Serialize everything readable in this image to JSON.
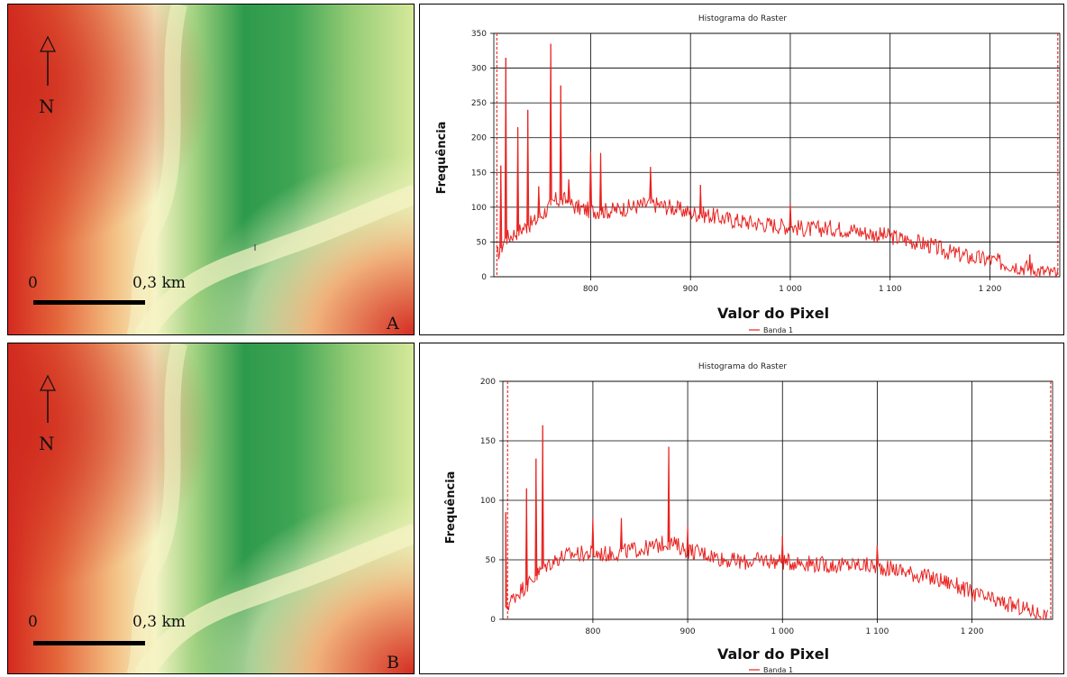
{
  "maps": [
    {
      "panel_label": "A",
      "north_label": "N",
      "scale_start": "0",
      "scale_end": "0,3 km"
    },
    {
      "panel_label": "B",
      "north_label": "N",
      "scale_start": "0",
      "scale_end": "0,3 km"
    }
  ],
  "colors": {
    "series": "#e8221f",
    "grid": "#000000",
    "dem_low": "#1a8a3e",
    "dem_high": "#d42a20"
  },
  "chart_data": [
    {
      "type": "line",
      "title": "Histograma do Raster",
      "xlabel": "Valor do Pixel",
      "ylabel": "Frequência",
      "xlim": [
        703,
        1270
      ],
      "ylim": [
        0,
        350
      ],
      "xticks": [
        800,
        900,
        1000,
        1100,
        1200
      ],
      "xtick_labels": [
        "800",
        "900",
        "1 000",
        "1 100",
        "1 200"
      ],
      "yticks": [
        0,
        50,
        100,
        150,
        200,
        250,
        300,
        350
      ],
      "ytick_labels": [
        "0",
        "50",
        "100",
        "150",
        "200",
        "250",
        "300",
        "350"
      ],
      "min_marker": 706,
      "max_marker": 1268,
      "series": [
        {
          "name": "Banda 1",
          "x": [
            706,
            715,
            730,
            745,
            755,
            765,
            775,
            785,
            800,
            820,
            840,
            860,
            880,
            900,
            920,
            940,
            960,
            980,
            1000,
            1020,
            1040,
            1060,
            1080,
            1100,
            1120,
            1140,
            1160,
            1180,
            1200,
            1220,
            1240,
            1260,
            1268
          ],
          "values": [
            30,
            55,
            68,
            80,
            95,
            110,
            110,
            100,
            95,
            95,
            100,
            105,
            100,
            92,
            88,
            82,
            78,
            75,
            72,
            68,
            70,
            68,
            62,
            58,
            52,
            45,
            35,
            28,
            24,
            18,
            12,
            5,
            0
          ],
          "spikes": [
            [
              710,
              160
            ],
            [
              715,
              315
            ],
            [
              727,
              215
            ],
            [
              737,
              240
            ],
            [
              748,
              130
            ],
            [
              760,
              335
            ],
            [
              770,
              275
            ],
            [
              778,
              140
            ],
            [
              800,
              180
            ],
            [
              810,
              178
            ],
            [
              860,
              158
            ],
            [
              910,
              132
            ],
            [
              1000,
              105
            ],
            [
              1240,
              32
            ]
          ]
        }
      ]
    },
    {
      "type": "line",
      "title": "Histograma do Raster",
      "xlabel": "Valor do Pixel",
      "ylabel": "Frequência",
      "xlim": [
        705,
        1285
      ],
      "ylim": [
        0,
        200
      ],
      "xticks": [
        800,
        900,
        1000,
        1100,
        1200
      ],
      "xtick_labels": [
        "800",
        "900",
        "1 000",
        "1 100",
        "1 200"
      ],
      "yticks": [
        0,
        50,
        100,
        150,
        200
      ],
      "ytick_labels": [
        "0",
        "50",
        "100",
        "150",
        "200"
      ],
      "min_marker": 710,
      "max_marker": 1283,
      "series": [
        {
          "name": "Banda 1",
          "x": [
            708,
            720,
            735,
            750,
            765,
            780,
            800,
            820,
            840,
            860,
            880,
            900,
            920,
            940,
            960,
            980,
            1000,
            1020,
            1040,
            1060,
            1080,
            1100,
            1120,
            1140,
            1160,
            1180,
            1200,
            1220,
            1240,
            1260,
            1280
          ],
          "values": [
            10,
            22,
            32,
            45,
            52,
            55,
            55,
            55,
            58,
            60,
            65,
            58,
            55,
            50,
            48,
            50,
            48,
            48,
            46,
            45,
            46,
            44,
            42,
            38,
            34,
            30,
            22,
            16,
            12,
            8,
            2
          ],
          "spikes": [
            [
              708,
              90
            ],
            [
              730,
              110
            ],
            [
              740,
              135
            ],
            [
              747,
              163
            ],
            [
              800,
              85
            ],
            [
              830,
              85
            ],
            [
              880,
              145
            ],
            [
              900,
              78
            ],
            [
              1000,
              70
            ],
            [
              1100,
              62
            ]
          ]
        }
      ]
    }
  ]
}
